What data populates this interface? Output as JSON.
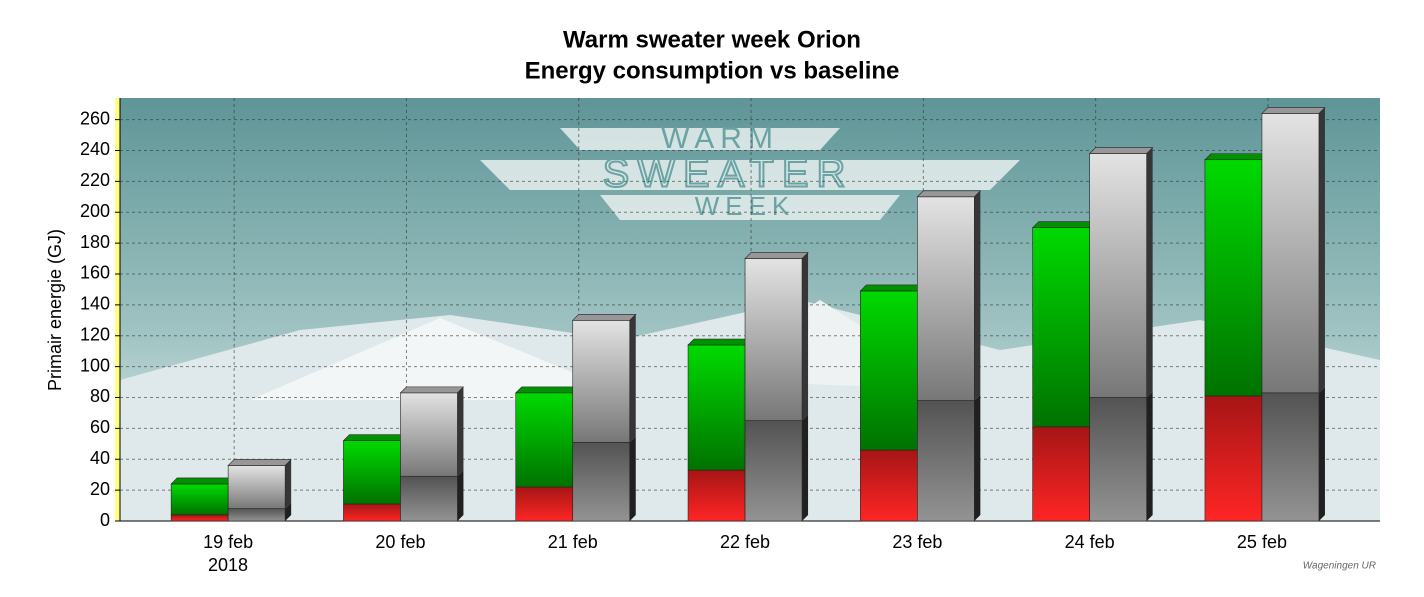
{
  "chart_data": {
    "type": "stacked-bar-3d",
    "title": "Warm sweater week Orion",
    "subtitle": "Energy consumption vs baseline",
    "y_label": "Primair energie (GJ)",
    "categories": [
      "19 feb",
      "20 feb",
      "21 feb",
      "22 feb",
      "23 feb",
      "24 feb",
      "25 feb"
    ],
    "x_sublabel": "2018",
    "series": [
      {
        "stack": "actual",
        "color": "#ff2020",
        "values": [
          4,
          11,
          22,
          33,
          46,
          61,
          81
        ]
      },
      {
        "stack": "actual",
        "color": "#00d000",
        "values": [
          20,
          41,
          61,
          81,
          103,
          129,
          153
        ]
      },
      {
        "stack": "baseline",
        "color": "#808080",
        "values": [
          8,
          29,
          51,
          65,
          78,
          80,
          83
        ]
      },
      {
        "stack": "baseline",
        "color": "#d8d8d8",
        "values": [
          28,
          54,
          79,
          105,
          132,
          158,
          181
        ]
      }
    ],
    "ylim": [
      0,
      274
    ],
    "yticks": [
      0,
      20,
      40,
      60,
      80,
      100,
      120,
      140,
      160,
      180,
      200,
      220,
      240,
      260
    ],
    "grid": true,
    "background_text": [
      "WARM",
      "SWEATER",
      "WEEK"
    ],
    "credit": "Wageningen UR"
  }
}
